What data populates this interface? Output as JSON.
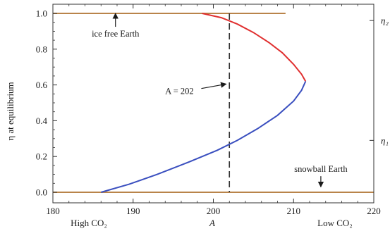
{
  "chart_data": {
    "type": "line",
    "xlabel": "A",
    "ylabel": "η at equilibrium",
    "xlim": [
      180,
      220
    ],
    "ylim": [
      0.0,
      1.0
    ],
    "xticks": [
      180,
      190,
      200,
      210,
      220
    ],
    "yticks": [
      "0.0",
      "0.2",
      "0.4",
      "0.6",
      "0.8",
      "1.0"
    ],
    "bottom_labels": {
      "left": "High CO₂",
      "right": "Low CO₂"
    },
    "right_tick_labels": [
      {
        "name": "η₂",
        "y": 0.96
      },
      {
        "name": "η₁",
        "y": 0.29
      }
    ],
    "series": [
      {
        "color": "#e03030",
        "points": [
          [
            198.6,
            1.0
          ],
          [
            201.0,
            0.976
          ],
          [
            203.0,
            0.94
          ],
          [
            205.0,
            0.893
          ],
          [
            207.0,
            0.835
          ],
          [
            208.6,
            0.78
          ],
          [
            210.0,
            0.715
          ],
          [
            211.0,
            0.66
          ],
          [
            211.5,
            0.62
          ]
        ]
      },
      {
        "color": "#3a4fbf",
        "points": [
          [
            211.5,
            0.62
          ],
          [
            211.0,
            0.57
          ],
          [
            210.0,
            0.51
          ],
          [
            208.0,
            0.43
          ],
          [
            205.5,
            0.355
          ],
          [
            203.0,
            0.29
          ],
          [
            200.5,
            0.235
          ],
          [
            197.0,
            0.17
          ],
          [
            193.0,
            0.1
          ],
          [
            189.5,
            0.045
          ],
          [
            186.0,
            0.0
          ]
        ]
      }
    ],
    "reference_lines": [
      {
        "orientation": "horizontal",
        "y": 1.0,
        "x_range": [
          180,
          209
        ],
        "color": "#b9844a"
      },
      {
        "orientation": "horizontal",
        "y": 0.0,
        "x_range": [
          180,
          220
        ],
        "color": "#b9844a"
      },
      {
        "orientation": "vertical",
        "x": 202,
        "y_range": [
          0.0,
          1.0
        ],
        "style": "dashed",
        "color": "#333333"
      }
    ],
    "annotations": [
      {
        "text": "ice free Earth",
        "text_x": 187.8,
        "text_y": 0.885,
        "arrow_from": [
          187.8,
          0.925
        ],
        "arrow_to": [
          187.8,
          1.0
        ]
      },
      {
        "text": "A = 202",
        "text_x": 194.0,
        "text_y": 0.565,
        "arrow_from": [
          198.5,
          0.58
        ],
        "arrow_to": [
          201.6,
          0.605
        ]
      },
      {
        "text": "snowball Earth",
        "text_x": 213.4,
        "text_y": 0.13,
        "arrow_from": [
          213.4,
          0.09
        ],
        "arrow_to": [
          213.4,
          0.03
        ]
      }
    ],
    "grid": false
  }
}
